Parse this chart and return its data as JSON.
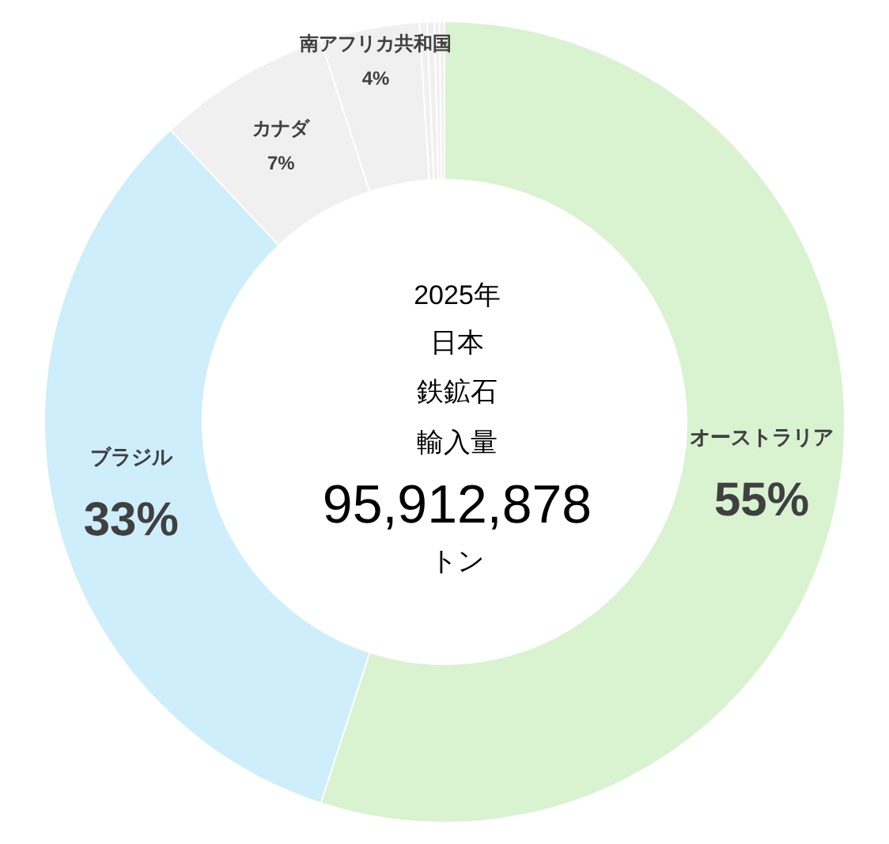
{
  "chart_data": {
    "type": "donut",
    "categories": [
      "オーストラリア",
      "ブラジル",
      "カナダ",
      "南アフリカ共和国",
      null,
      null,
      null,
      null
    ],
    "values": [
      55,
      33,
      7,
      4,
      0.3,
      0.3,
      0.2,
      0.2
    ],
    "value_labels": [
      "55%",
      "33%",
      "7%",
      "4%",
      null,
      null,
      null,
      null
    ],
    "colors": [
      "#d9f2d0",
      "#cdeefa",
      "#f0f0f0",
      "#f0f0f0",
      "#f0f0f0",
      "#f0f0f0",
      "#f0f0f0",
      "#f0f0f0"
    ],
    "annotations": [
      "2025年",
      "日本",
      "鉄鉱石",
      "輸入量",
      "95,912,878",
      "トン"
    ]
  }
}
